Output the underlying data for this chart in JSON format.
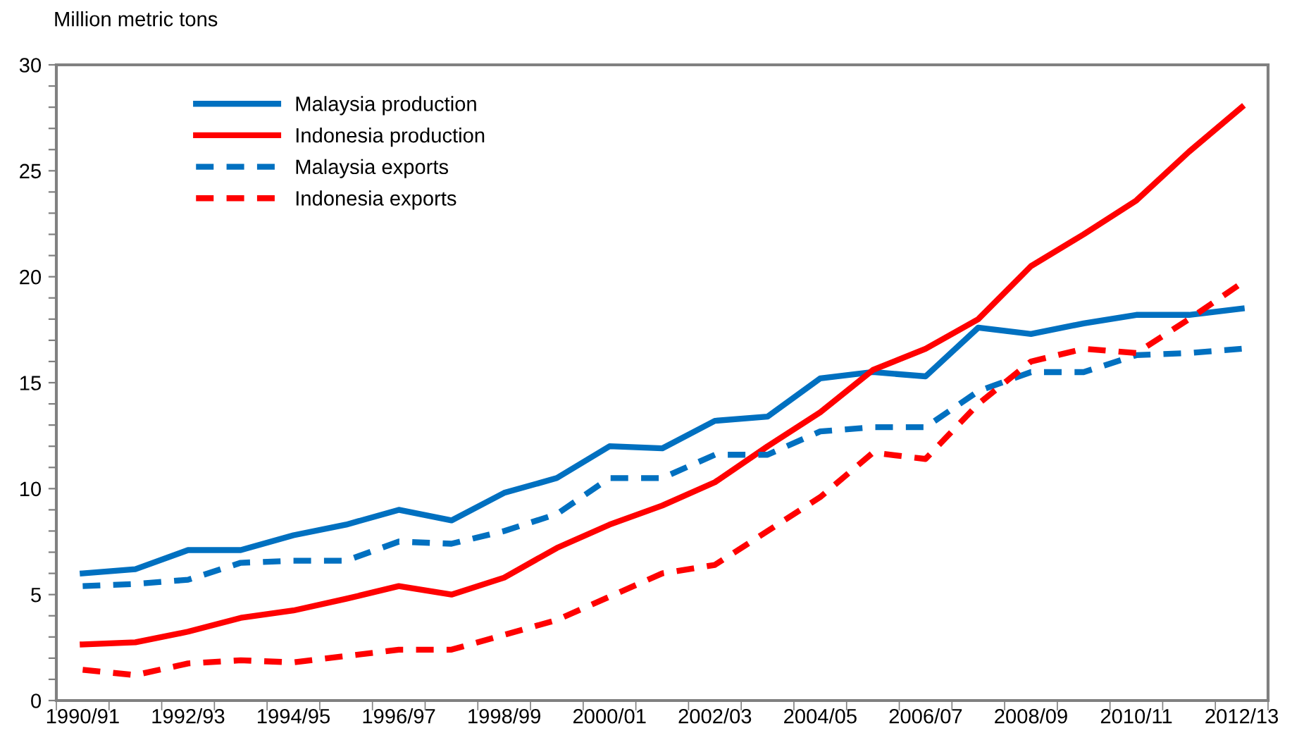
{
  "chart_data": {
    "type": "line",
    "ylabel": "Million metric tons",
    "categories": [
      "1990/91",
      null,
      "1992/93",
      null,
      "1994/95",
      null,
      "1996/97",
      null,
      "1998/99",
      null,
      "2000/01",
      null,
      "2002/03",
      null,
      "2004/05",
      null,
      "2006/07",
      null,
      "2008/09",
      null,
      "2010/11",
      null,
      "2012/13"
    ],
    "series": [
      {
        "name": "Malaysia production",
        "color": "#0070c0",
        "line_style": "solid",
        "values": [
          6.0,
          6.2,
          7.1,
          7.1,
          7.8,
          8.3,
          9.0,
          8.5,
          9.8,
          10.5,
          12.0,
          11.9,
          13.2,
          13.4,
          15.2,
          15.5,
          15.3,
          17.6,
          17.3,
          17.8,
          18.2,
          18.2,
          18.5
        ]
      },
      {
        "name": "Indonesia production",
        "color": "#ff0000",
        "line_style": "solid",
        "values": [
          2.65,
          2.75,
          3.25,
          3.9,
          4.25,
          4.8,
          5.4,
          5.0,
          5.8,
          7.2,
          8.3,
          9.2,
          10.3,
          12.0,
          13.6,
          15.6,
          16.6,
          18.0,
          20.5,
          22.0,
          23.6,
          25.9,
          28.0
        ]
      },
      {
        "name": "Malaysia exports",
        "color": "#0070c0",
        "line_style": "dashed",
        "values": [
          5.4,
          5.5,
          5.7,
          6.5,
          6.6,
          6.6,
          7.5,
          7.4,
          8.0,
          8.8,
          10.5,
          10.5,
          11.6,
          11.6,
          12.7,
          12.9,
          12.9,
          14.6,
          15.5,
          15.5,
          16.3,
          16.4,
          16.6
        ]
      },
      {
        "name": "Indonesia exports",
        "color": "#ff0000",
        "line_style": "dashed",
        "values": [
          1.45,
          1.2,
          1.75,
          1.9,
          1.8,
          2.1,
          2.4,
          2.4,
          3.1,
          3.8,
          4.9,
          6.0,
          6.4,
          8.0,
          9.6,
          11.7,
          11.4,
          14.0,
          16.0,
          16.6,
          16.4,
          18.0,
          19.7
        ]
      }
    ],
    "ylim": [
      0,
      30
    ],
    "yticks": [
      0,
      {
        "value": 1,
        "label": null
      },
      {
        "value": 2,
        "label": null
      },
      {
        "value": 3,
        "label": null
      },
      {
        "value": 4,
        "label": null
      },
      5,
      {
        "value": 6,
        "label": null
      },
      {
        "value": 7,
        "label": null
      },
      {
        "value": 8,
        "label": null
      },
      {
        "value": 9,
        "label": null
      },
      10,
      {
        "value": 11,
        "label": null
      },
      {
        "value": 12,
        "label": null
      },
      {
        "value": 13,
        "label": null
      },
      {
        "value": 14,
        "label": null
      },
      15,
      {
        "value": 16,
        "label": null
      },
      {
        "value": 17,
        "label": null
      },
      {
        "value": 18,
        "label": null
      },
      {
        "value": 19,
        "label": null
      },
      20,
      {
        "value": 21,
        "label": null
      },
      {
        "value": 22,
        "label": null
      },
      {
        "value": 23,
        "label": null
      },
      {
        "value": 24,
        "label": null
      },
      25,
      {
        "value": 26,
        "label": null
      },
      {
        "value": 27,
        "label": null
      },
      {
        "value": 28,
        "label": null
      },
      {
        "value": 29,
        "label": null
      },
      30
    ],
    "grid": false,
    "legend": "top left",
    "marker": "none"
  }
}
